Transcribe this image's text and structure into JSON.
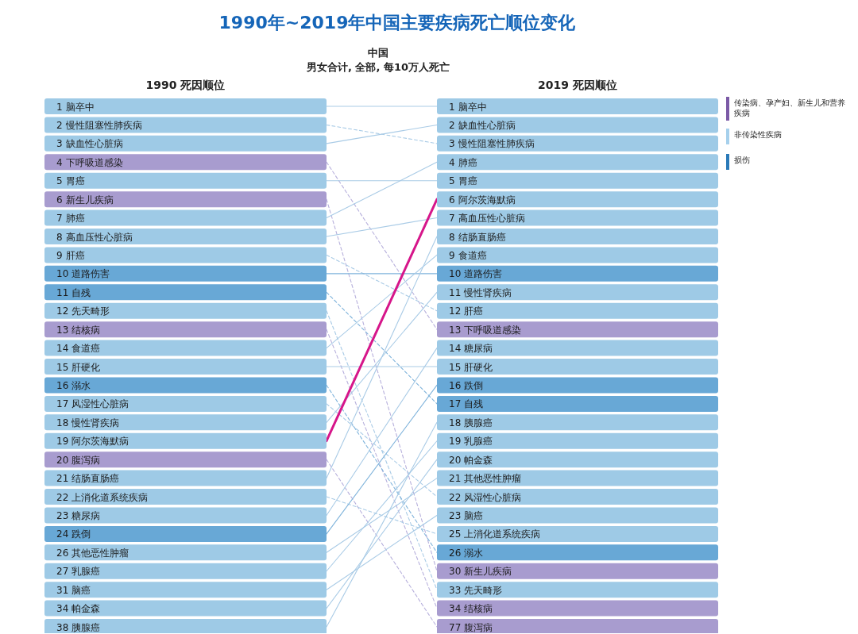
{
  "chart_data": {
    "type": "other",
    "title": "1990年~2019年中国主要疾病死亡顺位变化",
    "subtitle": "中国",
    "categories": [
      "1990 死因顺位",
      "2019 死因顺位"
    ],
    "data_labels": true,
    "annotations": [
      "男女合计, 全部, 每10万人死亡",
      "传染病、孕产妇、新生儿和营养疾病",
      "非传染性疾病",
      "损伤"
    ],
    "colors": [
      "#7b5aa6",
      "#a6d0ec",
      "#2a7ab8"
    ],
    "series": [
      {
        "name": "脑卒中",
        "values": [
          1,
          1
        ],
        "colors": [
          "#9ecae6",
          "#9ecae6"
        ],
        "color": "#a9cbe6",
        "line_style": "solid"
      },
      {
        "name": "慢性阻塞性肺疾病",
        "values": [
          2,
          3
        ],
        "colors": [
          "#9ecae6",
          "#9ecae6"
        ],
        "color": "#a9cbe6",
        "line_style": "dashed"
      },
      {
        "name": "缺血性心脏病",
        "values": [
          3,
          2
        ],
        "colors": [
          "#9ecae6",
          "#9ecae6"
        ],
        "color": "#a9cbe6",
        "line_style": "solid"
      },
      {
        "name": "下呼吸道感染",
        "values": [
          4,
          13
        ],
        "colors": [
          "#a89ccf",
          "#a89ccf"
        ],
        "color": "#b7b0dc",
        "line_style": "dashed"
      },
      {
        "name": "胃癌",
        "values": [
          5,
          5
        ],
        "colors": [
          "#9ecae6",
          "#9ecae6"
        ],
        "color": "#a9cbe6",
        "line_style": "solid"
      },
      {
        "name": "新生儿疾病",
        "values": [
          6,
          30
        ],
        "colors": [
          "#a89ccf",
          "#a89ccf"
        ],
        "color": "#b7b0dc",
        "line_style": "dashed"
      },
      {
        "name": "肺癌",
        "values": [
          7,
          4
        ],
        "colors": [
          "#9ecae6",
          "#9ecae6"
        ],
        "color": "#a9cbe6",
        "line_style": "solid"
      },
      {
        "name": "高血压性心脏病",
        "values": [
          8,
          7
        ],
        "colors": [
          "#9ecae6",
          "#9ecae6"
        ],
        "color": "#a9cbe6",
        "line_style": "solid"
      },
      {
        "name": "肝癌",
        "values": [
          9,
          12
        ],
        "colors": [
          "#9ecae6",
          "#9ecae6"
        ],
        "color": "#a9cbe6",
        "line_style": "dashed"
      },
      {
        "name": "道路伤害",
        "values": [
          10,
          10
        ],
        "colors": [
          "#68a8d6",
          "#68a8d6"
        ],
        "color": "#7fb3db",
        "line_style": "solid"
      },
      {
        "name": "自残",
        "values": [
          11,
          17
        ],
        "colors": [
          "#68a8d6",
          "#68a8d6"
        ],
        "color": "#7fb3db",
        "line_style": "dashed"
      },
      {
        "name": "先天畸形",
        "values": [
          12,
          33
        ],
        "colors": [
          "#9ecae6",
          "#9ecae6"
        ],
        "color": "#a9cbe6",
        "line_style": "dashed"
      },
      {
        "name": "结核病",
        "values": [
          13,
          34
        ],
        "colors": [
          "#a89ccf",
          "#a89ccf"
        ],
        "color": "#b7b0dc",
        "line_style": "dashed"
      },
      {
        "name": "食道癌",
        "values": [
          14,
          9
        ],
        "colors": [
          "#9ecae6",
          "#9ecae6"
        ],
        "color": "#a9cbe6",
        "line_style": "solid"
      },
      {
        "name": "肝硬化",
        "values": [
          15,
          15
        ],
        "colors": [
          "#9ecae6",
          "#9ecae6"
        ],
        "color": "#a9cbe6",
        "line_style": "solid"
      },
      {
        "name": "溺水",
        "values": [
          16,
          26
        ],
        "colors": [
          "#68a8d6",
          "#68a8d6"
        ],
        "color": "#7fb3db",
        "line_style": "dashed"
      },
      {
        "name": "风湿性心脏病",
        "values": [
          17,
          22
        ],
        "colors": [
          "#9ecae6",
          "#9ecae6"
        ],
        "color": "#a9cbe6",
        "line_style": "dashed"
      },
      {
        "name": "慢性肾疾病",
        "values": [
          18,
          11
        ],
        "colors": [
          "#9ecae6",
          "#9ecae6"
        ],
        "color": "#a9cbe6",
        "line_style": "solid"
      },
      {
        "name": "阿尔茨海默病",
        "values": [
          19,
          6
        ],
        "colors": [
          "#9ecae6",
          "#9ecae6"
        ],
        "color": "#d6168a",
        "line_style": "solid"
      },
      {
        "name": "腹泻病",
        "values": [
          20,
          77
        ],
        "colors": [
          "#a89ccf",
          "#a89ccf"
        ],
        "color": "#b7b0dc",
        "line_style": "dashed"
      },
      {
        "name": "结肠直肠癌",
        "values": [
          21,
          8
        ],
        "colors": [
          "#9ecae6",
          "#9ecae6"
        ],
        "color": "#a9cbe6",
        "line_style": "solid"
      },
      {
        "name": "上消化道系统疾病",
        "values": [
          22,
          25
        ],
        "colors": [
          "#9ecae6",
          "#9ecae6"
        ],
        "color": "#a9cbe6",
        "line_style": "dashed"
      },
      {
        "name": "糖尿病",
        "values": [
          23,
          14
        ],
        "colors": [
          "#9ecae6",
          "#9ecae6"
        ],
        "color": "#a9cbe6",
        "line_style": "solid"
      },
      {
        "name": "跌倒",
        "values": [
          24,
          16
        ],
        "colors": [
          "#68a8d6",
          "#68a8d6"
        ],
        "color": "#7fb3db",
        "line_style": "solid"
      },
      {
        "name": "其他恶性肿瘤",
        "values": [
          26,
          21
        ],
        "colors": [
          "#9ecae6",
          "#9ecae6"
        ],
        "color": "#a9cbe6",
        "line_style": "solid"
      },
      {
        "name": "乳腺癌",
        "values": [
          27,
          19
        ],
        "colors": [
          "#9ecae6",
          "#9ecae6"
        ],
        "color": "#a9cbe6",
        "line_style": "solid"
      },
      {
        "name": "脑癌",
        "values": [
          31,
          23
        ],
        "colors": [
          "#9ecae6",
          "#9ecae6"
        ],
        "color": "#a9cbe6",
        "line_style": "solid"
      },
      {
        "name": "帕金森",
        "values": [
          34,
          20
        ],
        "colors": [
          "#9ecae6",
          "#9ecae6"
        ],
        "color": "#a9cbe6",
        "line_style": "solid"
      },
      {
        "name": "胰腺癌",
        "values": [
          38,
          18
        ],
        "colors": [
          "#9ecae6",
          "#9ecae6"
        ],
        "color": "#a9cbe6",
        "line_style": "solid"
      }
    ]
  }
}
